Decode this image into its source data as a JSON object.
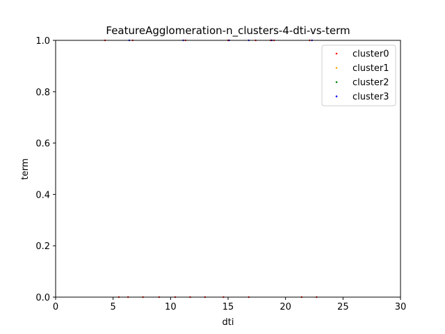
{
  "chart_data": {
    "type": "scatter",
    "title": "FeatureAgglomeration-n_clusters-4-dti-vs-term",
    "xlabel": "dti",
    "ylabel": "term",
    "xlim": [
      0,
      30
    ],
    "ylim": [
      0,
      1
    ],
    "xticks": [
      "0",
      "5",
      "10",
      "15",
      "20",
      "25",
      "30"
    ],
    "yticks": [
      "0.0",
      "0.2",
      "0.4",
      "0.6",
      "0.8",
      "1.0"
    ],
    "grid": false,
    "legend_position": "top-right",
    "series": [
      {
        "name": "cluster0",
        "color": "#ff0000",
        "x": [
          4.3,
          5.5,
          6.3,
          6.7,
          7.6,
          9.0,
          10.4,
          11.3,
          11.7,
          13.0,
          14.6,
          15.0,
          16.8,
          17.4,
          18.7,
          19.0,
          21.4,
          22.1,
          22.7
        ],
        "y": [
          1,
          0,
          0,
          1,
          0,
          0,
          0,
          1,
          0,
          0,
          0,
          1,
          0,
          1,
          1,
          1,
          0,
          1,
          0
        ]
      },
      {
        "name": "cluster1",
        "color": "#ffa500",
        "x": [],
        "y": []
      },
      {
        "name": "cluster2",
        "color": "#008000",
        "x": [],
        "y": []
      },
      {
        "name": "cluster3",
        "color": "#0000ff",
        "x": [
          6.4,
          11.1,
          15.1,
          16.8,
          18.8,
          22.3
        ],
        "y": [
          1,
          1,
          1,
          1,
          1,
          1
        ]
      }
    ]
  }
}
